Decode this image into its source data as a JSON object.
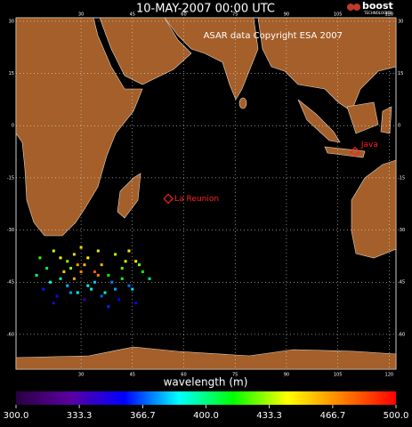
{
  "chart_data": {
    "type": "scatter",
    "title": "10-MAY-2007 00:00 UTC",
    "copyright": "ASAR data Copyright ESA 2007",
    "logo": {
      "name": "boost",
      "sub": "TECHNOLOGIES"
    },
    "xlim": [
      11,
      122
    ],
    "ylim": [
      -70,
      31
    ],
    "xticks": [
      30,
      45,
      60,
      75,
      90,
      105,
      120
    ],
    "yticks": [
      -60,
      -45,
      -30,
      -15,
      0,
      15,
      30
    ],
    "grid": true,
    "annotations": [
      {
        "text": "La Reunion",
        "x": 55.5,
        "y": -21
      },
      {
        "text": "Java",
        "x": 110,
        "y": -7.5
      }
    ],
    "annotation_color": "#ff2020",
    "x": [
      18,
      20,
      22,
      24,
      26,
      28,
      30,
      32,
      34,
      36,
      38,
      40,
      42,
      44,
      46,
      48,
      50,
      19,
      21,
      23,
      25,
      27,
      29,
      31,
      33,
      35,
      37,
      39,
      41,
      43,
      45,
      47,
      17,
      22,
      26,
      30,
      34,
      38,
      42,
      46,
      24,
      28,
      32,
      36,
      40,
      44,
      31,
      35,
      29,
      27
    ],
    "y": [
      -38,
      -41,
      -36,
      -44,
      -39,
      -37,
      -42,
      -38,
      -45,
      -40,
      -43,
      -37,
      -41,
      -46,
      -39,
      -42,
      -44,
      -47,
      -45,
      -49,
      -42,
      -48,
      -40,
      -50,
      -47,
      -36,
      -48,
      -45,
      -50,
      -39,
      -47,
      -40,
      -43,
      -51,
      -46,
      -35,
      -42,
      -52,
      -44,
      -51,
      -38,
      -44,
      -46,
      -49,
      -47,
      -36,
      -40,
      -43,
      -48,
      -41
    ],
    "values": [
      420,
      405,
      440,
      395,
      430,
      450,
      470,
      445,
      380,
      460,
      410,
      435,
      425,
      370,
      440,
      415,
      400,
      360,
      390,
      350,
      455,
      375,
      465,
      340,
      385,
      448,
      395,
      372,
      355,
      438,
      382,
      428,
      398,
      345,
      378,
      452,
      480,
      362,
      408,
      350,
      442,
      462,
      390,
      368,
      376,
      446,
      458,
      472,
      388,
      432
    ],
    "colorbar": {
      "label": "wavelength (m)",
      "clim": [
        300,
        500
      ],
      "colormap": [
        "#2a0040",
        "#5a00a0",
        "#0000ff",
        "#00ffff",
        "#00ff00",
        "#ffff00",
        "#ff8000",
        "#ff0000"
      ],
      "ticks": [
        {
          "value": 300,
          "label": "300.0"
        },
        333.3,
        366.7,
        {
          "value": 400,
          "label": "400.0"
        },
        433.3,
        466.7,
        {
          "value": 500,
          "label": "500.0"
        }
      ]
    }
  }
}
